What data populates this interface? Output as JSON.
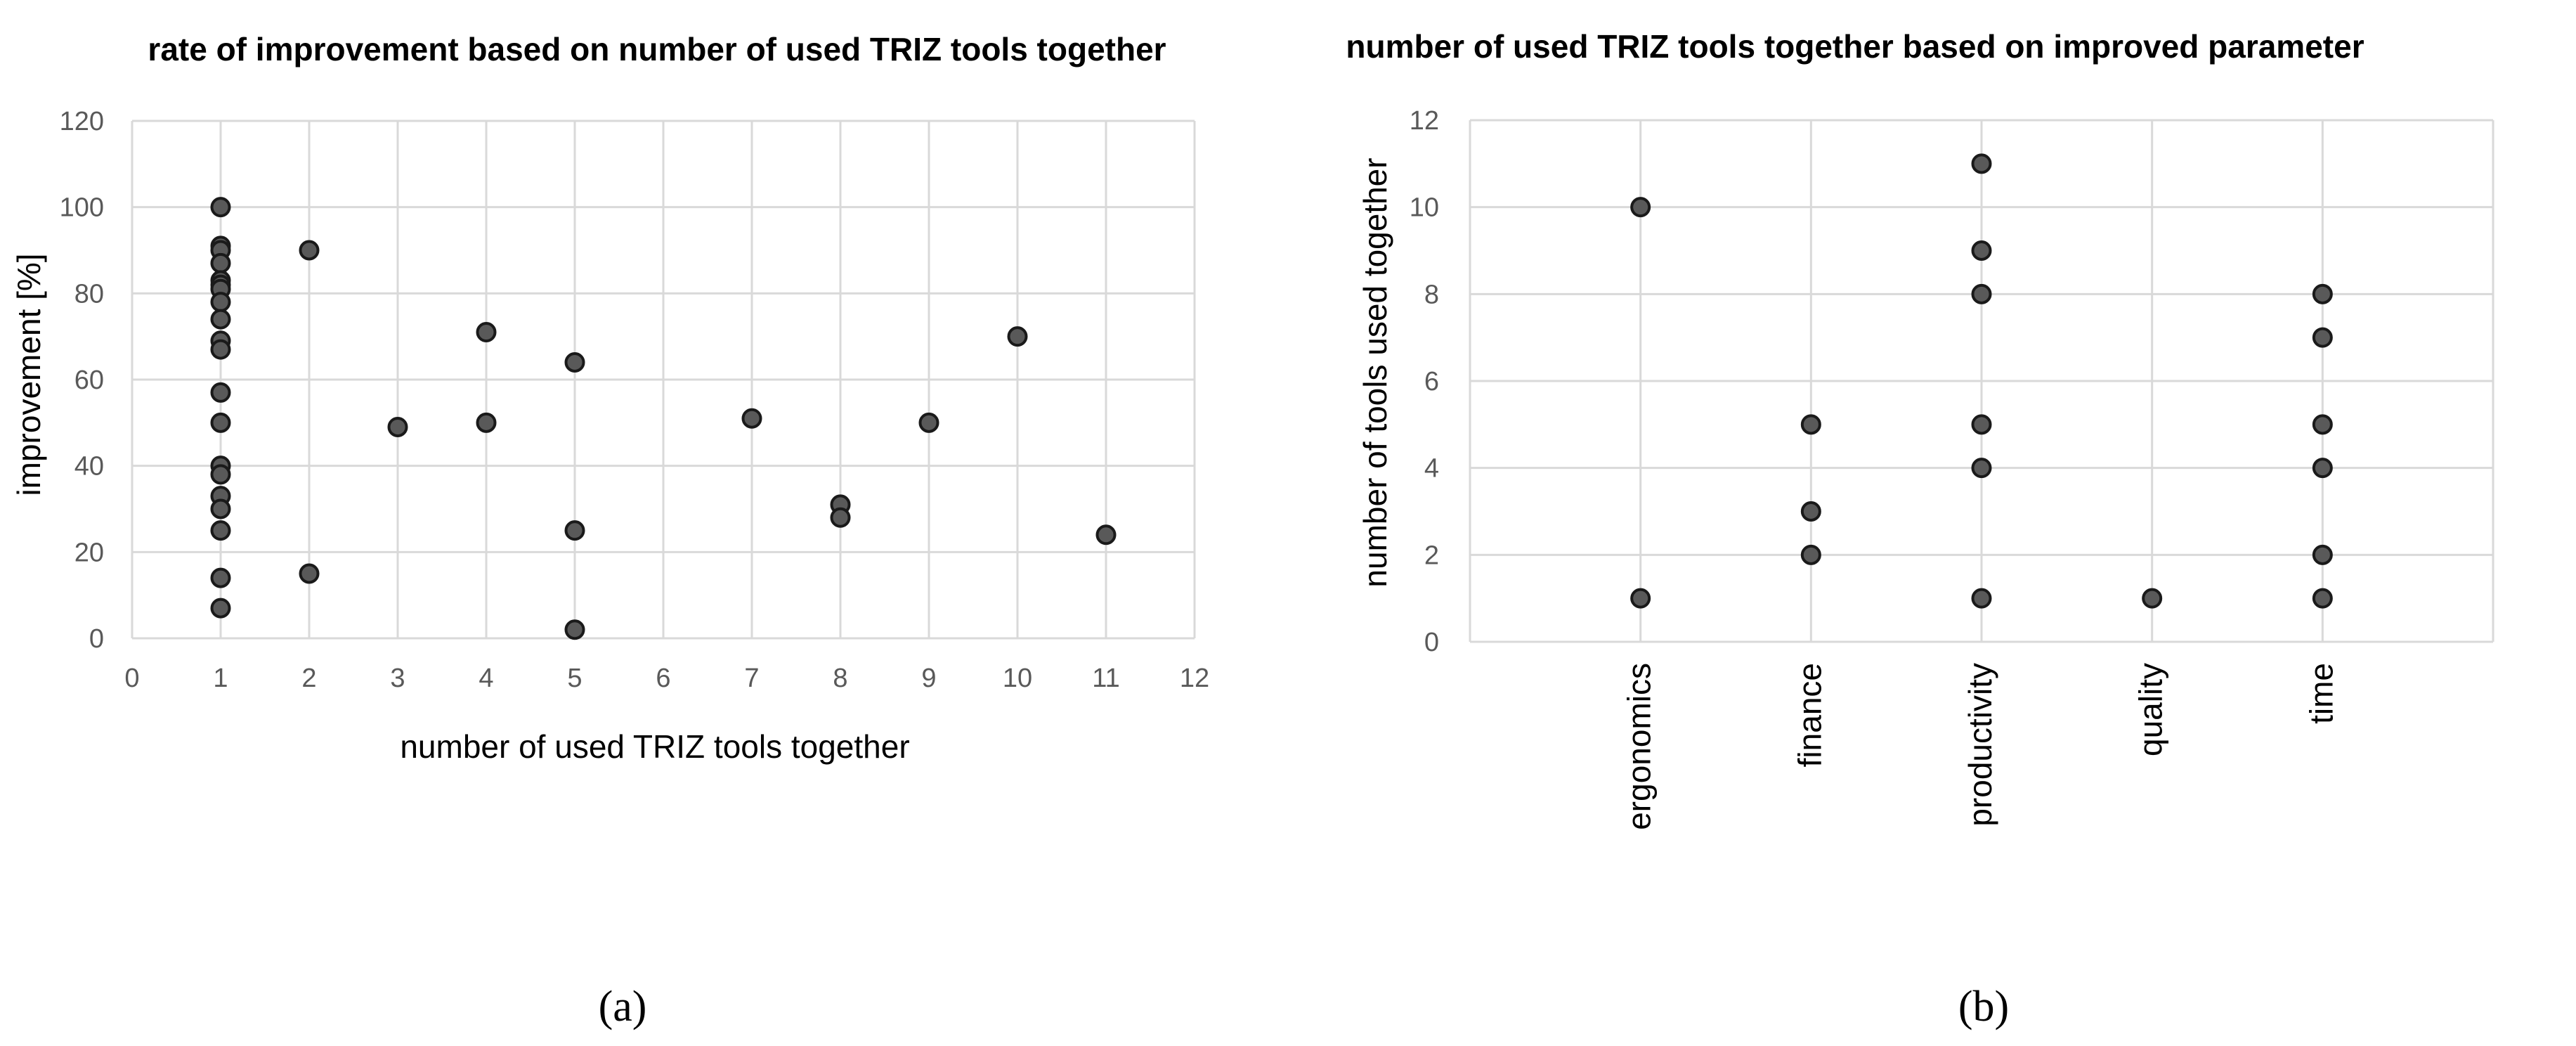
{
  "figure": {
    "panel_a_label": "(a)",
    "panel_b_label": "(b)"
  },
  "chart_data": [
    {
      "type": "scatter",
      "title": "rate of improvement based on number of used TRIZ tools together",
      "xlabel": "number of used TRIZ tools together",
      "ylabel": "improvement  [%]",
      "xlim": [
        0,
        12
      ],
      "ylim": [
        0,
        120
      ],
      "xticks": [
        0,
        1,
        2,
        3,
        4,
        5,
        6,
        7,
        8,
        9,
        10,
        11,
        12
      ],
      "yticks": [
        0,
        20,
        40,
        60,
        80,
        100,
        120
      ],
      "grid": true,
      "legend": "none",
      "points": [
        {
          "x": 1,
          "y": 100
        },
        {
          "x": 1,
          "y": 91
        },
        {
          "x": 1,
          "y": 90
        },
        {
          "x": 1,
          "y": 87
        },
        {
          "x": 1,
          "y": 83
        },
        {
          "x": 1,
          "y": 82
        },
        {
          "x": 1,
          "y": 81
        },
        {
          "x": 1,
          "y": 78
        },
        {
          "x": 1,
          "y": 74
        },
        {
          "x": 1,
          "y": 69
        },
        {
          "x": 1,
          "y": 67
        },
        {
          "x": 1,
          "y": 57
        },
        {
          "x": 1,
          "y": 50
        },
        {
          "x": 1,
          "y": 40
        },
        {
          "x": 1,
          "y": 38
        },
        {
          "x": 1,
          "y": 33
        },
        {
          "x": 1,
          "y": 30
        },
        {
          "x": 1,
          "y": 25
        },
        {
          "x": 1,
          "y": 14
        },
        {
          "x": 1,
          "y": 7
        },
        {
          "x": 2,
          "y": 90
        },
        {
          "x": 2,
          "y": 15
        },
        {
          "x": 3,
          "y": 49
        },
        {
          "x": 4,
          "y": 71
        },
        {
          "x": 4,
          "y": 50
        },
        {
          "x": 5,
          "y": 64
        },
        {
          "x": 5,
          "y": 25
        },
        {
          "x": 5,
          "y": 2
        },
        {
          "x": 7,
          "y": 51
        },
        {
          "x": 8,
          "y": 31
        },
        {
          "x": 8,
          "y": 28
        },
        {
          "x": 9,
          "y": 50
        },
        {
          "x": 10,
          "y": 70
        },
        {
          "x": 11,
          "y": 24
        }
      ]
    },
    {
      "type": "scatter",
      "title": "number of used TRIZ tools together based on improved parameter",
      "xlabel": "",
      "ylabel": "number of tools used together",
      "categories": [
        "ergonomics",
        "finance",
        "productivity",
        "quality",
        "time"
      ],
      "ylim": [
        0,
        12
      ],
      "yticks": [
        0,
        2,
        4,
        6,
        8,
        10,
        12
      ],
      "grid": true,
      "legend": "none",
      "points": [
        {
          "category": "ergonomics",
          "y": 10
        },
        {
          "category": "ergonomics",
          "y": 1
        },
        {
          "category": "finance",
          "y": 5
        },
        {
          "category": "finance",
          "y": 3
        },
        {
          "category": "finance",
          "y": 2
        },
        {
          "category": "productivity",
          "y": 11
        },
        {
          "category": "productivity",
          "y": 9
        },
        {
          "category": "productivity",
          "y": 8
        },
        {
          "category": "productivity",
          "y": 5
        },
        {
          "category": "productivity",
          "y": 4
        },
        {
          "category": "productivity",
          "y": 1
        },
        {
          "category": "quality",
          "y": 1
        },
        {
          "category": "time",
          "y": 8
        },
        {
          "category": "time",
          "y": 7
        },
        {
          "category": "time",
          "y": 5
        },
        {
          "category": "time",
          "y": 4
        },
        {
          "category": "time",
          "y": 2
        },
        {
          "category": "time",
          "y": 1
        }
      ]
    }
  ]
}
